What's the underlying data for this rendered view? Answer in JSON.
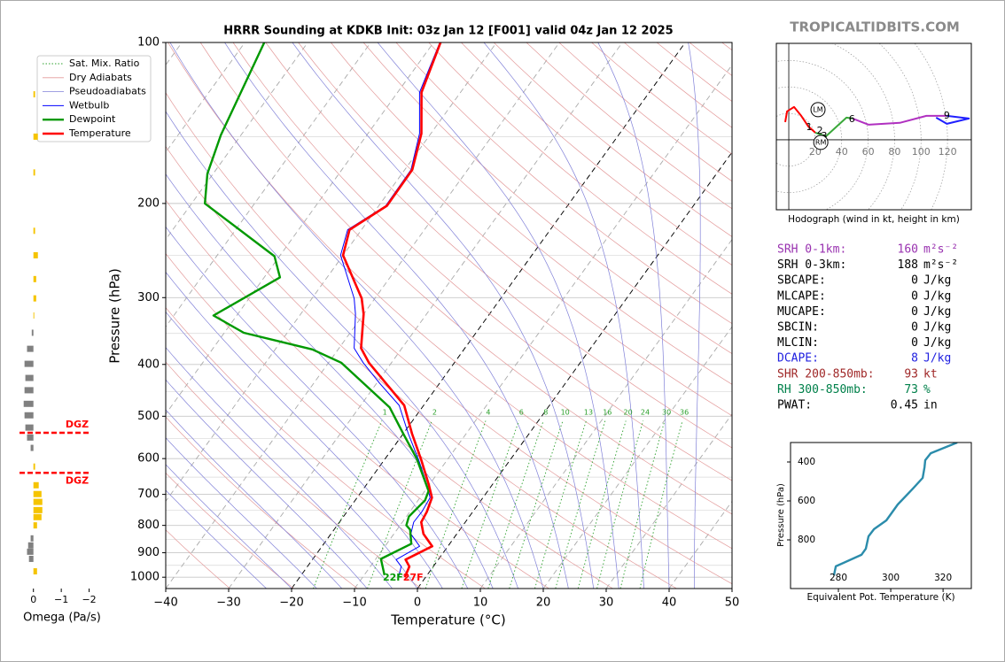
{
  "site": "TROPICALTIDBITS.COM",
  "chart_data": [
    {
      "type": "skewt",
      "title": "HRRR Sounding at KDKB Init: 03z Jan 12 [F001] valid 04z Jan 12 2025",
      "x_label": "Temperature (°C)",
      "y_label": "Pressure (hPa)",
      "xlim": [
        -40,
        50
      ],
      "ylim": [
        1050,
        100
      ],
      "log_y": true,
      "grid": true,
      "xticks": [
        {
          "value": -40,
          "label": "−40"
        },
        {
          "value": -30,
          "label": "−30"
        },
        {
          "value": -20,
          "label": "−20"
        },
        {
          "value": -10,
          "label": "−10"
        },
        0,
        10,
        20,
        30,
        40,
        50
      ],
      "yticks": [
        100,
        200,
        300,
        400,
        500,
        600,
        700,
        800,
        900,
        1000
      ],
      "background_lines": [
        {
          "name": "Sat. Mix. Ratio",
          "color": "#2ca02c"
        },
        {
          "name": "Dry Adiabats",
          "color": "#e39a9a"
        },
        {
          "name": "Pseudoadiabats",
          "color": "#8080d8"
        }
      ],
      "mixing_ratios": [
        1,
        2,
        4,
        6,
        8,
        10,
        13,
        16,
        20,
        24,
        30,
        36
      ],
      "highlight_isotherms": [
        -20,
        0
      ],
      "series": [
        {
          "name": "Wetbulb",
          "color": "#0000ff",
          "width": 1,
          "pressure": [
            1000,
            955,
            927,
            875,
            830,
            789,
            754,
            710,
            673,
            604,
            539,
            477,
            434,
            397,
            373,
            322,
            301,
            250,
            224,
            202,
            173,
            148,
            124,
            100
          ],
          "values": [
            -4.3,
            -5.1,
            -6.7,
            -4.5,
            -7.3,
            -8.2,
            -8.1,
            -8.4,
            -10.3,
            -14.5,
            -19.2,
            -23.9,
            -29.5,
            -34.5,
            -37.6,
            -41.3,
            -43.3,
            -50.4,
            -52.2,
            -48.9,
            -49.0,
            -51.8,
            -56.5,
            -59.0
          ]
        },
        {
          "name": "Dewpoint",
          "color": "#009900",
          "width": 2.4,
          "pressure": [
            990,
            924,
            866,
            815,
            800,
            770,
            718,
            690,
            600,
            539,
            481,
            426,
            397,
            375,
            349,
            324,
            275,
            251,
            200,
            176,
            149,
            100
          ],
          "values": [
            -6.8,
            -9.2,
            -6.1,
            -7.9,
            -9.0,
            -9.6,
            -8.9,
            -9.4,
            -15.0,
            -20.0,
            -25.2,
            -33.3,
            -38.0,
            -44.1,
            -56.9,
            -63.7,
            -57.5,
            -60.8,
            -77.9,
            -80.9,
            -83.2,
            -86.9
          ]
        },
        {
          "name": "Temperature",
          "color": "#ff0000",
          "width": 2.6,
          "pressure": [
            1000,
            955,
            927,
            875,
            830,
            789,
            754,
            710,
            673,
            604,
            539,
            477,
            434,
            397,
            373,
            322,
            301,
            250,
            224,
            202,
            173,
            148,
            124,
            100
          ],
          "values": [
            -3.3,
            -3.8,
            -5.2,
            -2.5,
            -5.3,
            -7.0,
            -7.3,
            -8.1,
            -10.0,
            -14.1,
            -18.6,
            -23.1,
            -28.5,
            -33.6,
            -36.5,
            -40.0,
            -42.1,
            -50.0,
            -51.9,
            -48.7,
            -48.8,
            -51.5,
            -56.2,
            -58.9
          ]
        }
      ],
      "surface_labels": [
        {
          "text": "22F",
          "color": "#009900"
        },
        {
          "text": "27F",
          "color": "#ff0000"
        }
      ]
    },
    {
      "type": "hbar",
      "x_label": "Omega (Pa/s)",
      "xlim": [
        0.5,
        -2.3
      ],
      "ylim": [
        1050,
        100
      ],
      "log_y": true,
      "xticks": [
        0,
        {
          "value": -1,
          "label": "−1"
        },
        {
          "value": -2,
          "label": "−2"
        }
      ],
      "pressure": [
        125,
        150,
        175,
        225,
        250,
        277,
        301,
        324,
        349,
        374,
        399,
        424,
        447,
        474,
        498,
        525,
        548,
        573,
        621,
        673,
        699,
        723,
        749,
        772,
        800,
        846,
        872,
        896,
        924,
        975
      ],
      "values": [
        -0.06,
        -0.16,
        -0.06,
        -0.06,
        -0.16,
        -0.1,
        -0.1,
        -0.03,
        0.06,
        0.23,
        0.32,
        0.29,
        0.32,
        0.35,
        0.32,
        0.29,
        0.23,
        0.1,
        -0.06,
        -0.19,
        -0.29,
        -0.32,
        -0.32,
        -0.29,
        -0.13,
        0.1,
        0.19,
        0.23,
        0.16,
        -0.13
      ],
      "rising_color": "#f5c400",
      "sinking_color": "#808080",
      "dgz": [
        {
          "pressure": 537,
          "label": "DGZ"
        },
        {
          "pressure": 638,
          "label": "DGZ"
        }
      ],
      "dgz_color": "#ff0000"
    },
    {
      "type": "hodograph",
      "caption": "Hodograph (wind in kt, height in km)",
      "xlim": [
        -9.4,
        138
      ],
      "ylim": [
        -53,
        73
      ],
      "rings": [
        20,
        40,
        60,
        80,
        100,
        120
      ],
      "series": [
        {
          "color": "#ff0000",
          "x": [
            -2.7,
            -1.3,
            4.0,
            9.4,
            14.8,
            20.1
          ],
          "values": [
            13.4,
            21.5,
            24.8,
            18.1,
            10.1,
            5.4
          ]
        },
        {
          "color": "#3aa83a",
          "x": [
            20.1,
            28.2,
            36.9,
            43.6,
            48.3
          ],
          "values": [
            5.4,
            2.7,
            10.7,
            16.8,
            16.1
          ]
        },
        {
          "color": "#b030c0",
          "x": [
            48.3,
            60.4,
            83.9,
            104.0,
            119.5
          ],
          "values": [
            16.1,
            11.4,
            12.8,
            18.1,
            18.1
          ]
        },
        {
          "color": "#2020ff",
          "x": [
            119.5,
            136.2,
            119.5,
            111.4
          ],
          "values": [
            18.1,
            16.1,
            12.1,
            16.8
          ]
        }
      ],
      "height_labels": [
        {
          "label": "1",
          "x": 15.4,
          "y": 9.4
        },
        {
          "label": "2",
          "x": 23.5,
          "y": 6.7
        },
        {
          "label": "3",
          "x": 26.8,
          "y": 2.7
        },
        {
          "label": "6",
          "x": 47.7,
          "y": 15.4
        },
        {
          "label": "9",
          "x": 119.5,
          "y": 18.1
        }
      ],
      "storm_motion": [
        {
          "label": "LM",
          "x": 22.1,
          "y": 22.8
        },
        {
          "label": "RM",
          "x": 24.2,
          "y": -2.0
        }
      ]
    },
    {
      "type": "line",
      "x_label": "Equivalent Pot. Temperature (K)",
      "y_label": "Pressure (hPa)",
      "xlim": [
        261.7,
        330.8
      ],
      "ylim": [
        1050,
        300
      ],
      "xticks": [
        280,
        300,
        320
      ],
      "yticks": [
        400,
        600,
        800
      ],
      "color": "#2b8cab",
      "pressure": [
        982,
        936,
        877,
        845,
        782,
        745,
        700,
        618,
        536,
        482,
        427,
        391,
        355,
        300
      ],
      "values": [
        278.3,
        279.0,
        288.8,
        290.5,
        291.5,
        293.6,
        298.3,
        302.7,
        308.5,
        312.2,
        312.9,
        313.2,
        315.3,
        325.4
      ]
    }
  ],
  "stats": [
    {
      "label": "SRH 0-1km:",
      "value": "160",
      "unit": "m²s⁻²",
      "color": "#9932b0"
    },
    {
      "label": "SRH 0-3km:",
      "value": "188",
      "unit": "m²s⁻²",
      "color": "#000000"
    },
    {
      "label": "SBCAPE:",
      "value": "0",
      "unit": "J/kg",
      "color": "#000000"
    },
    {
      "label": "MLCAPE:",
      "value": "0",
      "unit": "J/kg",
      "color": "#000000"
    },
    {
      "label": "MUCAPE:",
      "value": "0",
      "unit": "J/kg",
      "color": "#000000"
    },
    {
      "label": "SBCIN:",
      "value": "0",
      "unit": "J/kg",
      "color": "#000000"
    },
    {
      "label": "MLCIN:",
      "value": "0",
      "unit": "J/kg",
      "color": "#000000"
    },
    {
      "label": "DCAPE:",
      "value": "8",
      "unit": "J/kg",
      "color": "#2020e0"
    },
    {
      "label": "SHR 200-850mb:",
      "value": "93",
      "unit": "kt",
      "color": "#a02828"
    },
    {
      "label": "RH 300-850mb:",
      "value": "73",
      "unit": "%",
      "color": "#00804a"
    },
    {
      "label": "PWAT:",
      "value": "0.45",
      "unit": "in",
      "color": "#000000"
    }
  ]
}
